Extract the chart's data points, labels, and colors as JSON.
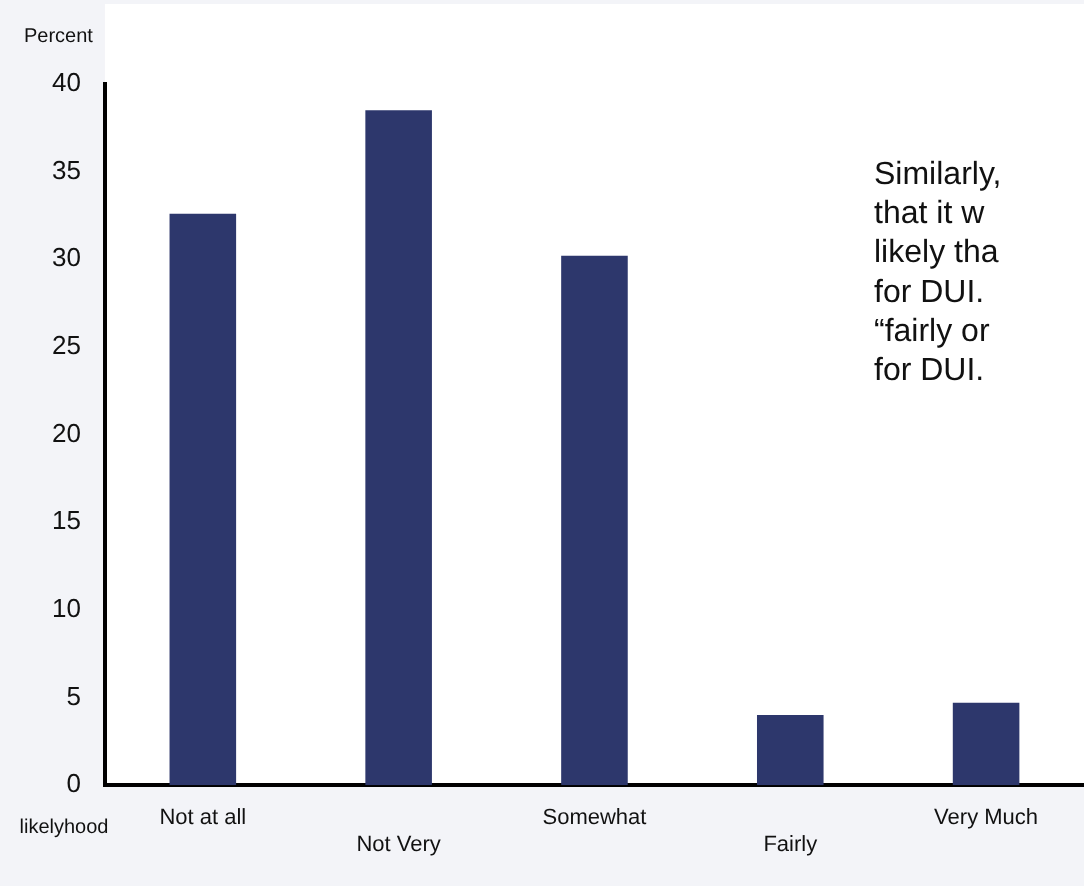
{
  "chart_data": {
    "type": "bar",
    "ylabel": "Percent",
    "xlabel": "likelyhood",
    "categories": [
      "Not at all",
      "Not Very",
      "Somewhat",
      "Fairly",
      "Very Much"
    ],
    "values": [
      32.6,
      38.5,
      30.2,
      4.0,
      4.7
    ],
    "color": "#2d376c",
    "ylim": [
      0,
      40
    ],
    "yticks": [
      0,
      5,
      10,
      15,
      20,
      25,
      30,
      35,
      40
    ],
    "grid": false,
    "legend": false,
    "annotations": [
      "Similarly,",
      "that it w",
      "likely tha",
      "for DUI.",
      "“fairly or",
      "for DUI."
    ]
  }
}
